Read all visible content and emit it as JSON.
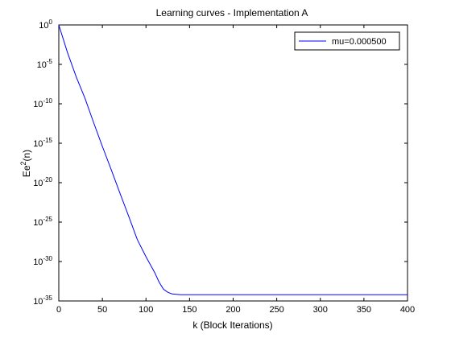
{
  "chart_data": {
    "type": "line",
    "title": "Learning curves - Implementation A",
    "xlabel": "k (Block Iterations)",
    "ylabel_base": "Ee",
    "ylabel_sup": "2",
    "ylabel_tail": "(n)",
    "xlim": [
      0,
      400
    ],
    "ylim_log10": [
      -35,
      0
    ],
    "yscale": "log",
    "grid": false,
    "legend_position": "top-right",
    "x_ticks": [
      0,
      50,
      100,
      150,
      200,
      250,
      300,
      350,
      400
    ],
    "y_tick_exponents": [
      0,
      -5,
      -10,
      -15,
      -20,
      -25,
      -30,
      -35
    ],
    "y_tick_base": "10",
    "series": [
      {
        "name": "mu=0.000500",
        "color": "#0000ff",
        "x": [
          0,
          10,
          20,
          30,
          40,
          50,
          60,
          70,
          80,
          90,
          100,
          110,
          115,
          120,
          125,
          130,
          135,
          140,
          150,
          200,
          250,
          300,
          350,
          400
        ],
        "y_log10": [
          0,
          -3.5,
          -6.6,
          -9.3,
          -12.4,
          -15.4,
          -18.3,
          -21.3,
          -24.2,
          -27.2,
          -29.4,
          -31.4,
          -32.6,
          -33.5,
          -33.9,
          -34.1,
          -34.15,
          -34.2,
          -34.2,
          -34.2,
          -34.2,
          -34.2,
          -34.2,
          -34.2
        ]
      }
    ]
  }
}
